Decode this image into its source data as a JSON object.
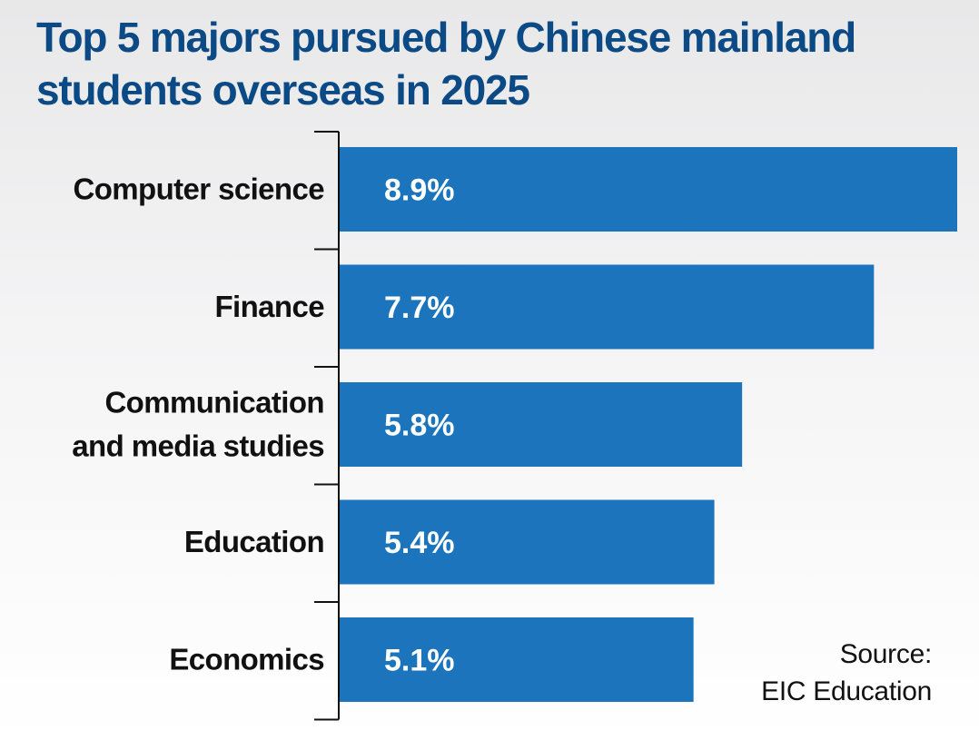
{
  "title": "Top 5 majors pursued by Chinese mainland students overseas in 2025",
  "source": {
    "line1": "Source:",
    "line2": "EIC Education"
  },
  "colors": {
    "bar": "#1b74bc",
    "title": "#0c4a86",
    "text": "#111111"
  },
  "chart_data": {
    "type": "bar",
    "orientation": "horizontal",
    "title": "Top 5 majors pursued by Chinese mainland students overseas in 2025",
    "categories": [
      [
        "Computer science"
      ],
      [
        "Finance"
      ],
      [
        "Communication",
        "and media studies"
      ],
      [
        "Education"
      ],
      [
        "Economics"
      ]
    ],
    "values": [
      8.9,
      7.7,
      5.8,
      5.4,
      5.1
    ],
    "value_labels": [
      "8.9%",
      "7.7%",
      "5.8%",
      "5.4%",
      "5.1%"
    ],
    "unit": "%",
    "xlim": [
      0,
      8.9
    ],
    "grid": false,
    "legend": "none"
  }
}
